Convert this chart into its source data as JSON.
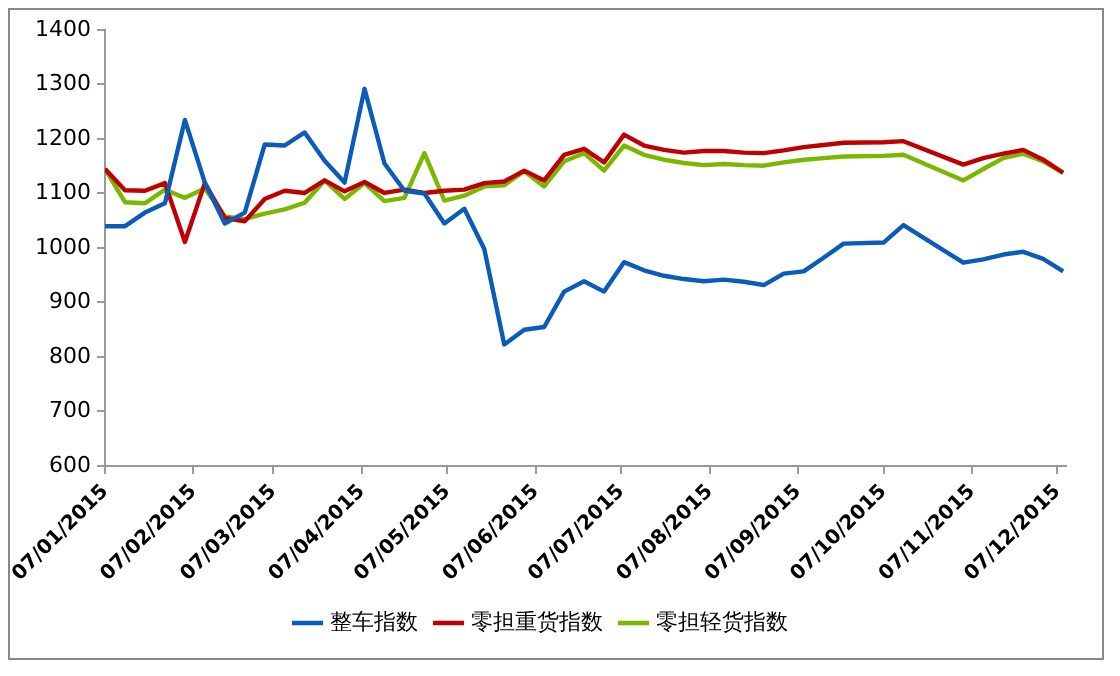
{
  "chart_data": {
    "type": "line",
    "x": [
      "2015-01-07",
      "2015-01-14",
      "2015-01-21",
      "2015-01-28",
      "2015-02-04",
      "2015-02-11",
      "2015-02-18",
      "2015-02-25",
      "2015-03-04",
      "2015-03-11",
      "2015-03-18",
      "2015-03-25",
      "2015-04-01",
      "2015-04-08",
      "2015-04-15",
      "2015-04-22",
      "2015-04-29",
      "2015-05-06",
      "2015-05-13",
      "2015-05-20",
      "2015-05-27",
      "2015-06-03",
      "2015-06-10",
      "2015-06-17",
      "2015-06-24",
      "2015-07-01",
      "2015-07-08",
      "2015-07-15",
      "2015-07-22",
      "2015-07-29",
      "2015-08-05",
      "2015-08-12",
      "2015-08-19",
      "2015-08-26",
      "2015-09-02",
      "2015-09-09",
      "2015-09-16",
      "2015-09-23",
      "2015-10-07",
      "2015-10-14",
      "2015-11-04",
      "2015-11-11",
      "2015-11-18",
      "2015-11-25",
      "2015-12-02",
      "2015-12-09"
    ],
    "series": [
      {
        "name": "整车指数",
        "color": "#0a5cb8",
        "values": [
          1040,
          1040,
          1065,
          1082,
          1235,
          1120,
          1045,
          1065,
          1190,
          1188,
          1212,
          1160,
          1120,
          1292,
          1155,
          1105,
          1100,
          1045,
          1072,
          998,
          823,
          850,
          855,
          920,
          939,
          920,
          974,
          959,
          949,
          943,
          939,
          942,
          938,
          932,
          953,
          957,
          982,
          1008,
          1010,
          1042,
          973,
          979,
          988,
          993,
          980,
          957
        ]
      },
      {
        "name": "零担重货指数",
        "color": "#c00000",
        "values": [
          1145,
          1106,
          1105,
          1119,
          1011,
          1119,
          1055,
          1049,
          1090,
          1105,
          1101,
          1124,
          1104,
          1121,
          1101,
          1107,
          1101,
          1105,
          1107,
          1119,
          1122,
          1142,
          1124,
          1171,
          1182,
          1157,
          1208,
          1188,
          1180,
          1175,
          1178,
          1178,
          1175,
          1174,
          1179,
          1185,
          1189,
          1193,
          1194,
          1196,
          1153,
          1165,
          1173,
          1180,
          1162,
          1138
        ]
      },
      {
        "name": "零担轻货指数",
        "color": "#7ab800",
        "values": [
          1145,
          1084,
          1082,
          1107,
          1092,
          1109,
          1058,
          1053,
          1063,
          1071,
          1083,
          1124,
          1090,
          1119,
          1086,
          1092,
          1174,
          1087,
          1096,
          1113,
          1115,
          1141,
          1113,
          1159,
          1174,
          1142,
          1188,
          1171,
          1162,
          1156,
          1152,
          1154,
          1152,
          1151,
          1157,
          1162,
          1165,
          1168,
          1169,
          1171,
          1124,
          1145,
          1165,
          1173,
          1159,
          1138
        ]
      }
    ],
    "xlim": [
      "2015-01-07",
      "2015-12-10"
    ],
    "xticks": [
      {
        "value": "2015-01-07",
        "label": "07/01/2015"
      },
      {
        "value": "2015-02-07",
        "label": "07/02/2015"
      },
      {
        "value": "2015-03-07",
        "label": "07/03/2015"
      },
      {
        "value": "2015-04-07",
        "label": "07/04/2015"
      },
      {
        "value": "2015-05-07",
        "label": "07/05/2015"
      },
      {
        "value": "2015-06-07",
        "label": "07/06/2015"
      },
      {
        "value": "2015-07-07",
        "label": "07/07/2015"
      },
      {
        "value": "2015-08-07",
        "label": "07/08/2015"
      },
      {
        "value": "2015-09-07",
        "label": "07/09/2015"
      },
      {
        "value": "2015-10-07",
        "label": "07/10/2015"
      },
      {
        "value": "2015-11-07",
        "label": "07/11/2015"
      },
      {
        "value": "2015-12-07",
        "label": "07/12/2015"
      }
    ],
    "ylim": [
      600,
      1400
    ],
    "yticks": [
      600,
      700,
      800,
      900,
      1000,
      1100,
      1200,
      1300,
      1400
    ],
    "legend": "bottom",
    "marker": "none",
    "line_style": "solid",
    "grid": false
  }
}
